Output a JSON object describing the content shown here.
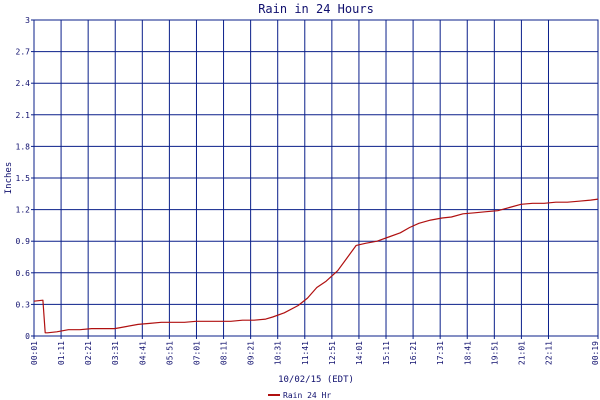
{
  "chart_data": {
    "type": "line",
    "title": "Rain in 24 Hours",
    "xlabel": "10/02/15 (EDT)",
    "ylabel": "Inches",
    "ylim": [
      0,
      3
    ],
    "yticks": [
      "0",
      "0.3",
      "0.6",
      "0.9",
      "1.2",
      "1.5",
      "1.8",
      "2.1",
      "2.4",
      "2.7",
      "3"
    ],
    "xtick_labels": [
      "00:01",
      "01:11",
      "02:21",
      "03:31",
      "04:41",
      "05:51",
      "07:01",
      "08:11",
      "09:21",
      "10:31",
      "11:41",
      "12:51",
      "14:01",
      "15:11",
      "16:21",
      "17:31",
      "18:41",
      "19:51",
      "21:01",
      "22:11",
      "00:19"
    ],
    "xlim_hours": [
      0.0167,
      24.3167
    ],
    "grid": true,
    "legend_position": "bottom-center",
    "colors": {
      "line": "#b01010",
      "grid": "#0a1f8a",
      "text": "#10106e"
    },
    "series": [
      {
        "name": "Rain 24 Hr",
        "x": [
          0.0167,
          0.4,
          0.5,
          0.6,
          1.0,
          1.5,
          2.0,
          2.5,
          3.0,
          3.5,
          4.0,
          4.5,
          5.0,
          5.5,
          6.0,
          6.5,
          7.0,
          7.5,
          8.0,
          8.5,
          9.0,
          9.5,
          10.0,
          10.3,
          10.8,
          11.4,
          11.8,
          12.2,
          12.6,
          13.1,
          13.5,
          13.9,
          14.3,
          14.8,
          15.3,
          15.8,
          16.2,
          16.6,
          17.1,
          17.6,
          18.0,
          18.5,
          19.0,
          19.5,
          20.0,
          20.5,
          21.0,
          21.5,
          22.0,
          22.5,
          23.0,
          23.5,
          24.0,
          24.3167
        ],
        "y": [
          0.33,
          0.34,
          0.03,
          0.03,
          0.04,
          0.06,
          0.06,
          0.07,
          0.07,
          0.07,
          0.09,
          0.11,
          0.12,
          0.13,
          0.13,
          0.13,
          0.14,
          0.14,
          0.14,
          0.14,
          0.15,
          0.15,
          0.16,
          0.18,
          0.22,
          0.29,
          0.36,
          0.46,
          0.52,
          0.62,
          0.74,
          0.86,
          0.88,
          0.9,
          0.94,
          0.98,
          1.03,
          1.07,
          1.1,
          1.12,
          1.13,
          1.16,
          1.17,
          1.18,
          1.19,
          1.22,
          1.25,
          1.26,
          1.26,
          1.27,
          1.27,
          1.28,
          1.29,
          1.3
        ]
      }
    ]
  }
}
